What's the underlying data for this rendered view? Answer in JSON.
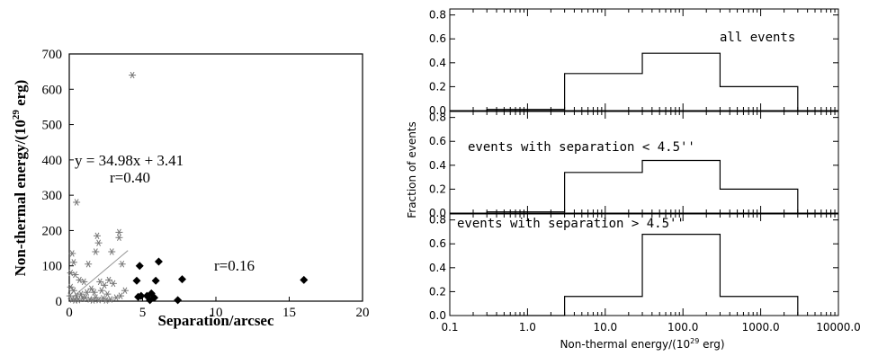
{
  "chart_data": [
    {
      "type": "scatter",
      "xlabel": "Separation/arcsec",
      "ylabel_main": "Non-thermal energy/(10",
      "ylabel_sup": "29",
      "ylabel_end": " erg)",
      "xlim": [
        0,
        20
      ],
      "ylim": [
        0,
        700
      ],
      "xticks": [
        0,
        5,
        10,
        15,
        20
      ],
      "yticks": [
        0,
        100,
        200,
        300,
        400,
        500,
        600,
        700
      ],
      "grid": false,
      "annotations": {
        "fit_text": "y = 34.98x + 3.41",
        "r_small_text": "r=0.40",
        "r_large_text": "r=0.16"
      },
      "fit_line": {
        "slope": 34.98,
        "intercept": 3.41,
        "x_range": [
          0.2,
          4.0
        ]
      },
      "series": [
        {
          "marker": "asterisk",
          "color": "#777777",
          "points": [
            [
              4.3,
              640
            ],
            [
              0.5,
              280
            ],
            [
              3.4,
              195
            ],
            [
              3.4,
              180
            ],
            [
              1.9,
              185
            ],
            [
              2.0,
              165
            ],
            [
              1.8,
              140
            ],
            [
              2.9,
              140
            ],
            [
              3.6,
              105
            ],
            [
              1.3,
              105
            ],
            [
              0.2,
              135
            ],
            [
              0.3,
              110
            ],
            [
              0.4,
              75
            ],
            [
              0.1,
              80
            ],
            [
              0.7,
              60
            ],
            [
              1.0,
              55
            ],
            [
              2.1,
              55
            ],
            [
              2.4,
              45
            ],
            [
              2.7,
              60
            ],
            [
              3.0,
              50
            ],
            [
              1.5,
              35
            ],
            [
              1.7,
              25
            ],
            [
              2.2,
              30
            ],
            [
              2.6,
              20
            ],
            [
              0.1,
              40
            ],
            [
              0.3,
              30
            ],
            [
              0.5,
              15
            ],
            [
              0.8,
              20
            ],
            [
              1.1,
              10
            ],
            [
              1.4,
              5
            ],
            [
              1.8,
              10
            ],
            [
              2.3,
              8
            ],
            [
              2.8,
              5
            ],
            [
              3.2,
              10
            ],
            [
              0.2,
              5
            ],
            [
              0.6,
              3
            ],
            [
              0.9,
              8
            ],
            [
              1.6,
              2
            ],
            [
              2.0,
              3
            ],
            [
              2.5,
              2
            ],
            [
              3.5,
              15
            ],
            [
              0.05,
              15
            ],
            [
              0.4,
              2
            ],
            [
              1.2,
              25
            ],
            [
              3.8,
              30
            ]
          ]
        },
        {
          "marker": "diamond",
          "color": "#000000",
          "points": [
            [
              6.1,
              112
            ],
            [
              4.8,
              100
            ],
            [
              4.6,
              58
            ],
            [
              5.9,
              58
            ],
            [
              7.7,
              62
            ],
            [
              16.0,
              60
            ],
            [
              5.6,
              22
            ],
            [
              4.9,
              15
            ],
            [
              5.3,
              15
            ],
            [
              5.8,
              10
            ],
            [
              4.7,
              12
            ],
            [
              5.5,
              3
            ],
            [
              7.4,
              3
            ]
          ]
        }
      ]
    },
    {
      "type": "histogram",
      "xscale": "log",
      "xlabel_main": "Non-thermal energy/(10",
      "xlabel_sup": "29",
      "xlabel_end": " erg)",
      "ylabel": "Fraction of events",
      "xlim": [
        0.1,
        10000
      ],
      "xtick_labels": [
        "0.1",
        "1.0",
        "10.0",
        "100.0",
        "1000.0",
        "10000.0"
      ],
      "ylim": [
        0,
        0.85
      ],
      "yticks": [
        "0.0",
        "0.2",
        "0.4",
        "0.6",
        "0.8"
      ],
      "bin_edges": [
        0.3,
        3,
        30,
        300,
        3000
      ],
      "panels": [
        {
          "label": "all events",
          "values": [
            0.01,
            0.31,
            0.48,
            0.2
          ]
        },
        {
          "label": "events with separation < 4.5''",
          "values": [
            0.01,
            0.34,
            0.44,
            0.2
          ]
        },
        {
          "label": "events with separation > 4.5''",
          "values": [
            0.0,
            0.16,
            0.68,
            0.16
          ]
        }
      ]
    }
  ]
}
